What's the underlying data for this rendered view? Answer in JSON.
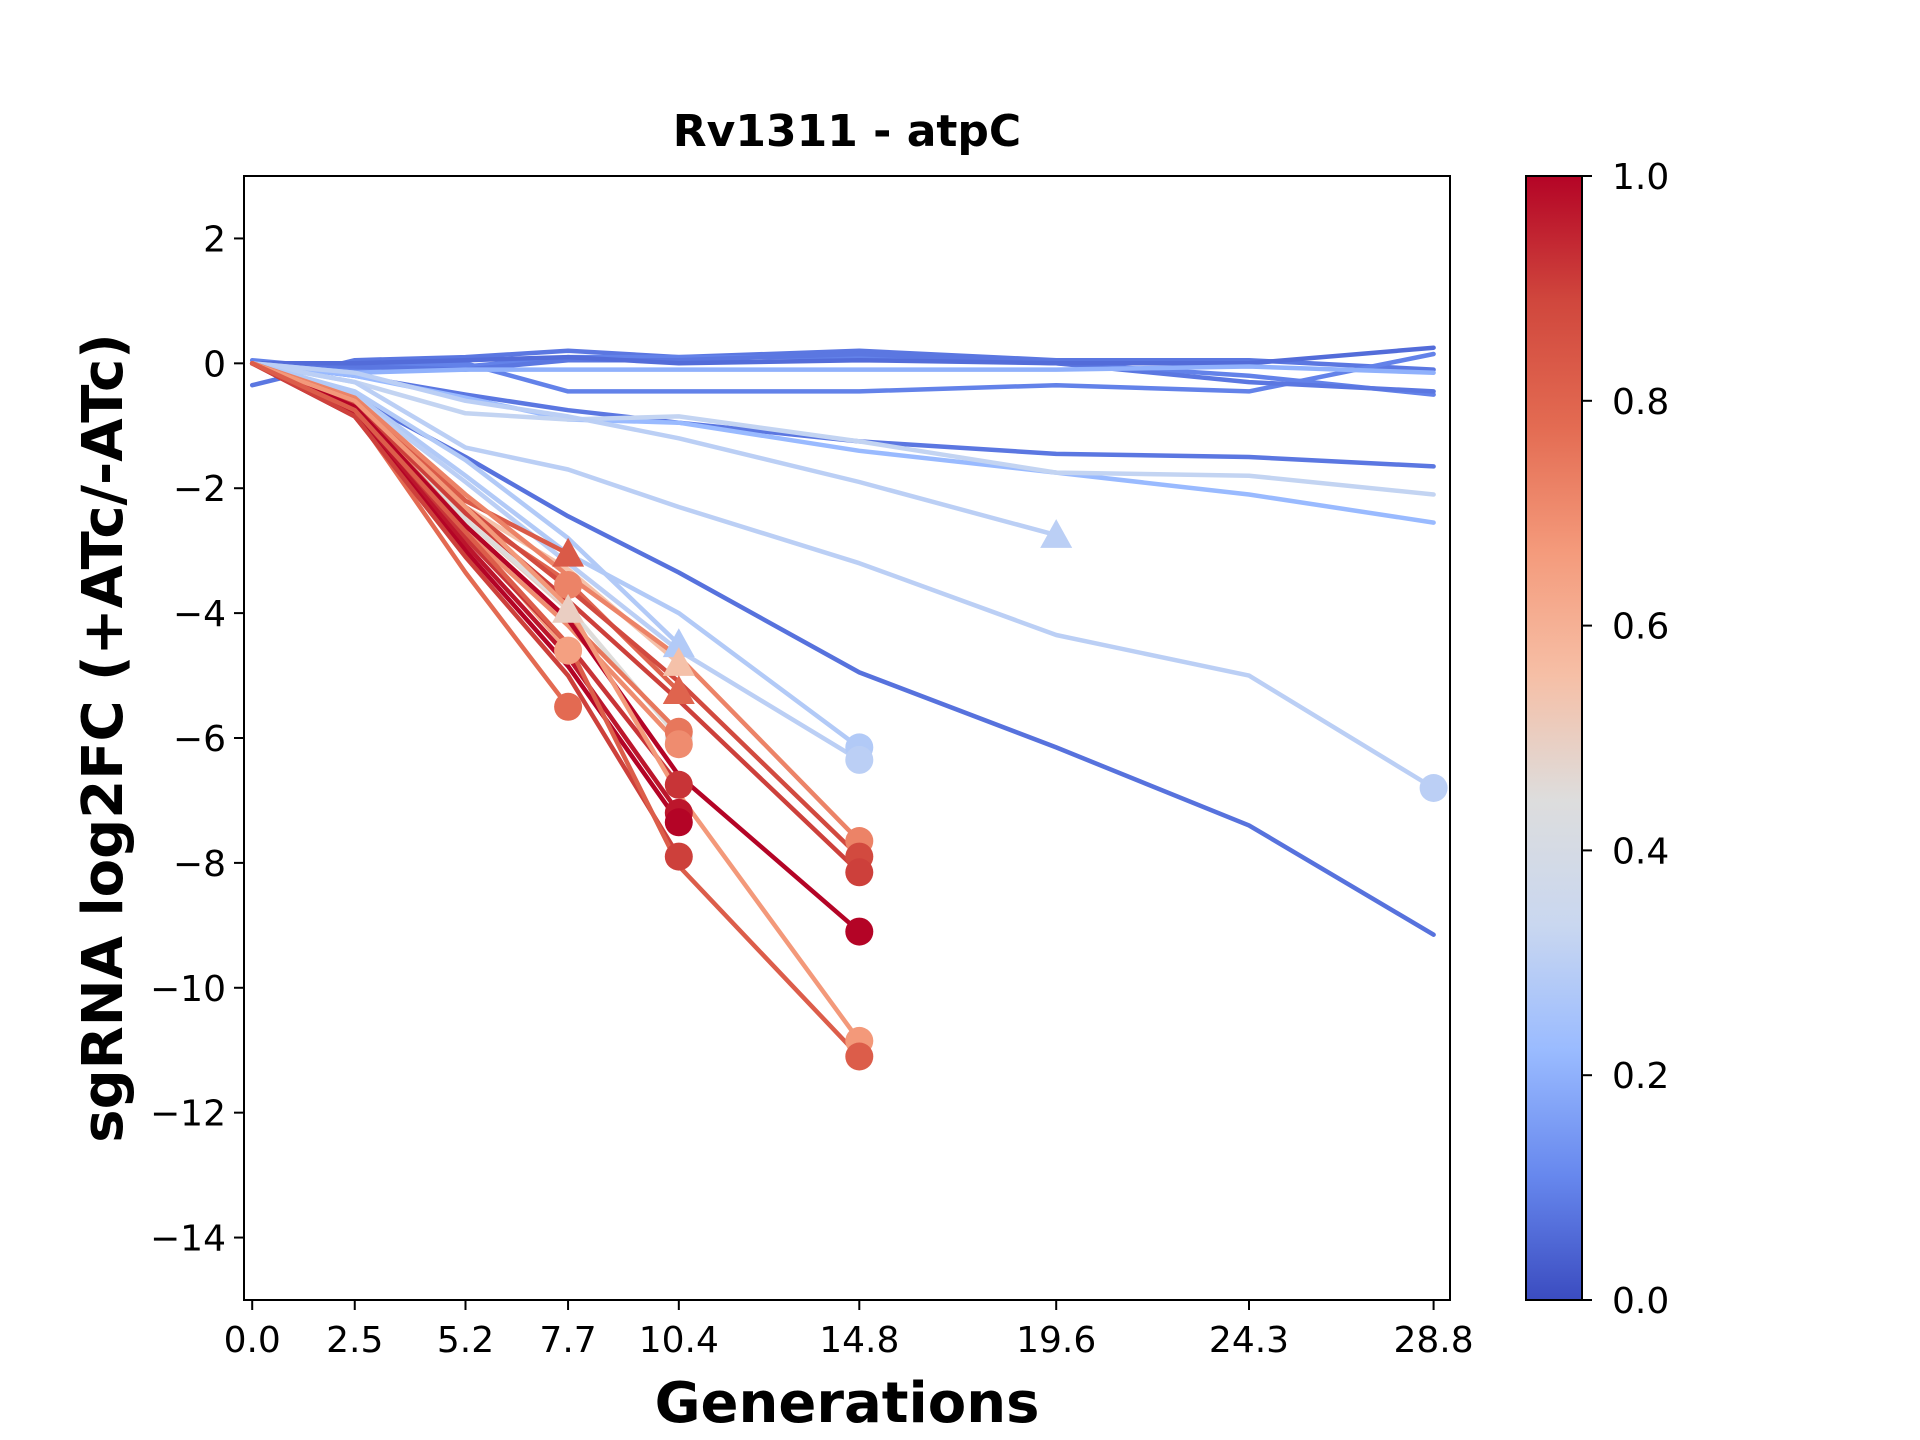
{
  "chart_data": {
    "type": "line",
    "title": "Rv1311 - atpC",
    "xlabel": "Generations",
    "ylabel": "sgRNA log2FC (+ATc/-ATc)",
    "xlim": [
      -0.2,
      29.2
    ],
    "ylim": [
      -15,
      3
    ],
    "x_ticks": [
      "0.0",
      "2.5",
      "5.2",
      "7.7",
      "10.4",
      "14.8",
      "19.6",
      "24.3",
      "28.8"
    ],
    "x_tick_values": [
      0.0,
      2.5,
      5.2,
      7.7,
      10.4,
      14.8,
      19.6,
      24.3,
      28.8
    ],
    "y_ticks": [
      "2",
      "0",
      "−2",
      "−4",
      "−6",
      "−8",
      "−10",
      "−12",
      "−14"
    ],
    "y_tick_values": [
      2,
      0,
      -2,
      -4,
      -6,
      -8,
      -10,
      -12,
      -14
    ],
    "grid": false,
    "colorbar": {
      "colormap": "coolwarm",
      "range": [
        0.0,
        1.0
      ],
      "ticks": [
        "0.0",
        "0.2",
        "0.4",
        "0.6",
        "0.8",
        "1.0"
      ],
      "tick_values": [
        0.0,
        0.2,
        0.4,
        0.6,
        0.8,
        1.0
      ],
      "stops": [
        "#3b4cc0",
        "#6788ee",
        "#9abbff",
        "#c9d7f0",
        "#dddddd",
        "#f6bfa6",
        "#f49a7b",
        "#e36b52",
        "#d0473d",
        "#b40426"
      ]
    },
    "series": [
      {
        "color_value": 0.08,
        "x": [
          0.0,
          2.5,
          5.2,
          7.7,
          10.4,
          14.8,
          19.6,
          24.3,
          28.8
        ],
        "y": [
          -0.35,
          0.05,
          0.1,
          0.2,
          0.1,
          0.2,
          0.05,
          0.05,
          -0.1
        ],
        "marker": "none"
      },
      {
        "color_value": 0.1,
        "x": [
          0.0,
          2.5,
          5.2,
          7.7,
          10.4,
          14.8,
          19.6,
          24.3,
          28.8
        ],
        "y": [
          0.0,
          -0.05,
          0.0,
          -0.45,
          -0.45,
          -0.45,
          -0.35,
          -0.45,
          0.15
        ],
        "marker": "none"
      },
      {
        "color_value": 0.1,
        "x": [
          0.0,
          2.5,
          5.2,
          7.7,
          10.4,
          14.8,
          19.6,
          24.3,
          28.8
        ],
        "y": [
          0.05,
          -0.1,
          -0.05,
          0.1,
          0.1,
          0.1,
          0.0,
          -0.2,
          -0.5
        ],
        "marker": "none"
      },
      {
        "color_value": 0.08,
        "x": [
          0.0,
          2.5,
          5.2,
          7.7,
          10.4,
          14.8,
          19.6,
          24.3,
          28.8
        ],
        "y": [
          0.0,
          -0.05,
          -0.1,
          0.05,
          0.05,
          0.15,
          0.0,
          -0.3,
          -0.45
        ],
        "marker": "none"
      },
      {
        "color_value": 0.06,
        "x": [
          0.0,
          2.5,
          5.2,
          7.7,
          10.4,
          14.8,
          19.6,
          24.3,
          28.8
        ],
        "y": [
          0.0,
          0.0,
          0.05,
          0.1,
          0.0,
          0.05,
          0.0,
          0.0,
          0.25
        ],
        "marker": "none"
      },
      {
        "color_value": 0.2,
        "x": [
          0.0,
          2.5,
          5.2,
          7.7,
          10.4,
          14.8,
          19.6,
          24.3,
          28.8
        ],
        "y": [
          0.0,
          -0.15,
          -0.1,
          -0.1,
          -0.1,
          -0.1,
          -0.1,
          -0.05,
          -0.15
        ],
        "marker": "none"
      },
      {
        "color_value": 0.08,
        "x": [
          0.0,
          2.5,
          5.2,
          7.7,
          10.4,
          14.8,
          19.6,
          24.3,
          28.8
        ],
        "y": [
          0.0,
          -0.2,
          -0.5,
          -0.75,
          -0.95,
          -1.25,
          -1.45,
          -1.5,
          -1.65
        ],
        "marker": "none"
      },
      {
        "color_value": 0.22,
        "x": [
          0.0,
          2.5,
          5.2,
          7.7,
          10.4,
          14.8,
          19.6,
          24.3,
          28.8
        ],
        "y": [
          0.0,
          -0.2,
          -0.55,
          -0.9,
          -0.95,
          -1.4,
          -1.75,
          -2.1,
          -2.55
        ],
        "marker": "none"
      },
      {
        "color_value": 0.32,
        "x": [
          0.0,
          2.5,
          5.2,
          7.7,
          10.4,
          14.8,
          19.6,
          24.3,
          28.8
        ],
        "y": [
          0.0,
          -0.3,
          -0.8,
          -0.9,
          -0.85,
          -1.25,
          -1.75,
          -1.8,
          -2.1
        ],
        "marker": "none"
      },
      {
        "color_value": 0.3,
        "x": [
          0.0,
          2.5,
          5.2,
          7.7,
          10.4,
          14.8,
          19.6
        ],
        "y": [
          0.0,
          -0.15,
          -0.6,
          -0.85,
          -1.2,
          -1.9,
          -2.75
        ],
        "marker": "triangle"
      },
      {
        "color_value": 0.3,
        "x": [
          0.0,
          2.5,
          5.2,
          7.7,
          10.4,
          14.8,
          19.6,
          24.3,
          28.8
        ],
        "y": [
          0.0,
          -0.3,
          -1.35,
          -1.7,
          -2.3,
          -3.2,
          -4.35,
          -5.0,
          -6.8
        ],
        "marker": "circle"
      },
      {
        "color_value": 0.07,
        "x": [
          0.0,
          2.5,
          5.2,
          7.7,
          10.4,
          14.8,
          19.6,
          24.3,
          28.8
        ],
        "y": [
          0.0,
          -0.55,
          -1.5,
          -2.45,
          -3.35,
          -4.95,
          -6.15,
          -7.4,
          -9.15
        ],
        "marker": "none"
      },
      {
        "color_value": 0.28,
        "x": [
          0.0,
          2.5,
          5.2,
          7.7,
          10.4
        ],
        "y": [
          0.0,
          -0.45,
          -1.55,
          -2.8,
          -4.5
        ],
        "marker": "triangle"
      },
      {
        "color_value": 0.28,
        "x": [
          0.0,
          2.5,
          5.2,
          7.7,
          10.4,
          14.8
        ],
        "y": [
          0.0,
          -0.5,
          -1.8,
          -3.05,
          -4.0,
          -6.15
        ],
        "marker": "circle"
      },
      {
        "color_value": 0.3,
        "x": [
          0.0,
          2.5,
          5.2,
          7.7,
          10.4,
          14.8
        ],
        "y": [
          0.0,
          -0.55,
          -1.9,
          -3.2,
          -4.6,
          -6.35
        ],
        "marker": "circle"
      },
      {
        "color_value": 0.83,
        "x": [
          0.0,
          2.5,
          5.2,
          7.7
        ],
        "y": [
          0.0,
          -0.6,
          -2.2,
          -3.05
        ],
        "marker": "triangle"
      },
      {
        "color_value": 0.72,
        "x": [
          0.0,
          2.5,
          5.2,
          7.7
        ],
        "y": [
          0.0,
          -0.65,
          -2.35,
          -3.55
        ],
        "marker": "circle"
      },
      {
        "color_value": 0.5,
        "x": [
          0.0,
          2.5,
          5.2,
          7.7
        ],
        "y": [
          0.0,
          -0.7,
          -2.5,
          -3.95
        ],
        "marker": "triangle"
      },
      {
        "color_value": 0.65,
        "x": [
          0.0,
          2.5,
          5.2,
          7.7
        ],
        "y": [
          0.0,
          -0.75,
          -2.7,
          -4.6
        ],
        "marker": "circle"
      },
      {
        "color_value": 0.78,
        "x": [
          0.0,
          2.5,
          5.2,
          7.7
        ],
        "y": [
          0.0,
          -0.8,
          -3.35,
          -5.5
        ],
        "marker": "circle"
      },
      {
        "color_value": 0.55,
        "x": [
          0.0,
          2.5,
          5.2,
          7.7,
          10.4
        ],
        "y": [
          0.0,
          -0.6,
          -2.3,
          -3.3,
          -4.8
        ],
        "marker": "triangle"
      },
      {
        "color_value": 0.8,
        "x": [
          0.0,
          2.5,
          5.2,
          7.7,
          10.4
        ],
        "y": [
          0.0,
          -0.6,
          -2.4,
          -3.5,
          -5.25
        ],
        "marker": "triangle"
      },
      {
        "color_value": 0.45,
        "x": [
          0.0,
          2.5,
          5.2,
          7.7,
          10.4
        ],
        "y": [
          0.0,
          -0.65,
          -2.5,
          -3.9,
          -6.0
        ],
        "marker": "circle"
      },
      {
        "color_value": 0.75,
        "x": [
          0.0,
          2.5,
          5.2,
          7.7,
          10.4
        ],
        "y": [
          0.0,
          -0.65,
          -2.6,
          -4.1,
          -5.9
        ],
        "marker": "circle"
      },
      {
        "color_value": 0.7,
        "x": [
          0.0,
          2.5,
          5.2,
          7.7,
          10.4
        ],
        "y": [
          0.0,
          -0.7,
          -2.7,
          -4.2,
          -6.1
        ],
        "marker": "circle"
      },
      {
        "color_value": 0.92,
        "x": [
          0.0,
          2.5,
          5.2,
          7.7,
          10.4
        ],
        "y": [
          0.0,
          -0.75,
          -2.8,
          -4.5,
          -6.75
        ],
        "marker": "circle"
      },
      {
        "color_value": 0.97,
        "x": [
          0.0,
          2.5,
          5.2,
          7.7,
          10.4
        ],
        "y": [
          0.0,
          -0.8,
          -2.9,
          -4.7,
          -7.2
        ],
        "marker": "circle"
      },
      {
        "color_value": 1.0,
        "x": [
          0.0,
          2.5,
          5.2,
          7.7,
          10.4
        ],
        "y": [
          0.0,
          -0.85,
          -3.0,
          -4.85,
          -7.35
        ],
        "marker": "circle"
      },
      {
        "color_value": 0.9,
        "x": [
          0.0,
          2.5,
          5.2,
          7.7,
          10.4
        ],
        "y": [
          0.0,
          -0.85,
          -3.1,
          -5.0,
          -7.9
        ],
        "marker": "circle"
      },
      {
        "color_value": 0.72,
        "x": [
          0.0,
          2.5,
          5.2,
          7.7,
          10.4,
          14.8
        ],
        "y": [
          0.0,
          -0.55,
          -2.1,
          -3.4,
          -4.7,
          -7.65
        ],
        "marker": "circle"
      },
      {
        "color_value": 0.88,
        "x": [
          0.0,
          2.5,
          5.2,
          7.7,
          10.4,
          14.8
        ],
        "y": [
          0.0,
          -0.6,
          -2.3,
          -3.6,
          -5.1,
          -7.9
        ],
        "marker": "circle"
      },
      {
        "color_value": 0.9,
        "x": [
          0.0,
          2.5,
          5.2,
          7.7,
          10.4,
          14.8
        ],
        "y": [
          0.0,
          -0.65,
          -2.4,
          -3.8,
          -5.4,
          -8.15
        ],
        "marker": "circle"
      },
      {
        "color_value": 1.0,
        "x": [
          0.0,
          2.5,
          5.2,
          7.7,
          10.4,
          14.8
        ],
        "y": [
          0.0,
          -0.7,
          -2.6,
          -4.1,
          -6.6,
          -9.1
        ],
        "marker": "circle"
      },
      {
        "color_value": 0.67,
        "x": [
          0.0,
          2.5,
          5.2,
          7.7,
          10.4,
          14.8
        ],
        "y": [
          0.0,
          -0.6,
          -2.3,
          -3.9,
          -6.9,
          -10.85
        ],
        "marker": "circle"
      },
      {
        "color_value": 0.82,
        "x": [
          0.0,
          2.5,
          5.2,
          7.7,
          10.4,
          14.8
        ],
        "y": [
          0.0,
          -0.75,
          -2.7,
          -4.5,
          -8.05,
          -11.1
        ],
        "marker": "circle"
      }
    ]
  }
}
